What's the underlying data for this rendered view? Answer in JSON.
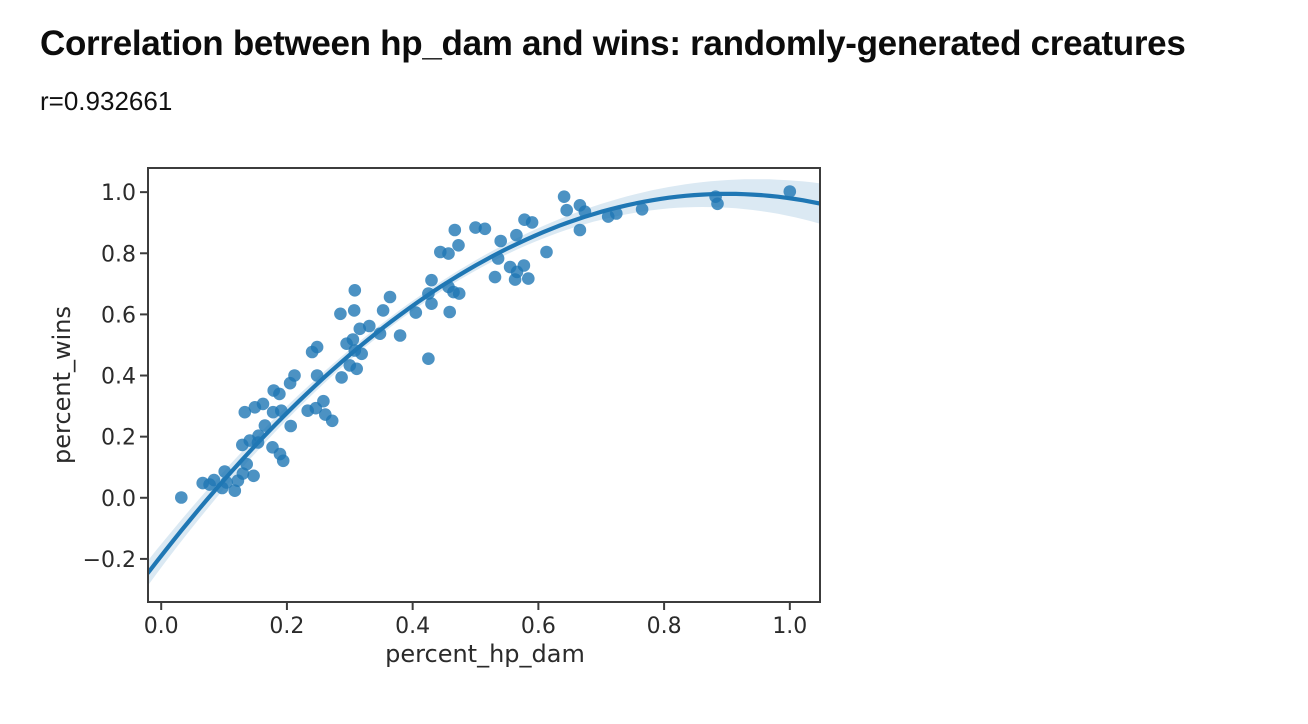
{
  "header": {
    "title": "Correlation between hp_dam and wins: randomly-generated creatures",
    "r_label": "r=0.932661"
  },
  "chart_data": {
    "type": "scatter",
    "title": "Correlation between hp_dam and wins: randomly-generated creatures",
    "annotation": "r=0.932661",
    "xlabel": "percent_hp_dam",
    "ylabel": "percent_wins",
    "xlim": [
      -0.021,
      1.048
    ],
    "ylim": [
      -0.341,
      1.079
    ],
    "grid": false,
    "legend": null,
    "x_ticks": [
      0.0,
      0.2,
      0.4,
      0.6,
      0.8,
      1.0
    ],
    "x_tick_labels": [
      "0.0",
      "0.2",
      "0.4",
      "0.6",
      "0.8",
      "1.0"
    ],
    "y_ticks": [
      1.0,
      0.8,
      0.6,
      0.4,
      0.2,
      0.0,
      -0.2
    ],
    "y_tick_labels": [
      "1.0",
      "0.8",
      "0.6",
      "0.4",
      "0.2",
      "0.0",
      "−0.2"
    ],
    "marker_color": "#1f77b4",
    "marker_opacity": 0.8,
    "line_color": "#1f77b4",
    "band_color": "#1f77b4",
    "band_opacity": 0.16,
    "points": [
      [
        0.032,
        0.001
      ],
      [
        0.066,
        0.048
      ],
      [
        0.077,
        0.043
      ],
      [
        0.084,
        0.058
      ],
      [
        0.097,
        0.032
      ],
      [
        0.104,
        0.05
      ],
      [
        0.101,
        0.086
      ],
      [
        0.117,
        0.023
      ],
      [
        0.122,
        0.056
      ],
      [
        0.13,
        0.079
      ],
      [
        0.136,
        0.11
      ],
      [
        0.147,
        0.072
      ],
      [
        0.129,
        0.173
      ],
      [
        0.141,
        0.187
      ],
      [
        0.154,
        0.181
      ],
      [
        0.155,
        0.203
      ],
      [
        0.133,
        0.28
      ],
      [
        0.149,
        0.296
      ],
      [
        0.162,
        0.307
      ],
      [
        0.165,
        0.236
      ],
      [
        0.177,
        0.165
      ],
      [
        0.189,
        0.143
      ],
      [
        0.194,
        0.121
      ],
      [
        0.178,
        0.28
      ],
      [
        0.191,
        0.285
      ],
      [
        0.206,
        0.235
      ],
      [
        0.179,
        0.351
      ],
      [
        0.188,
        0.34
      ],
      [
        0.205,
        0.375
      ],
      [
        0.212,
        0.4
      ],
      [
        0.233,
        0.285
      ],
      [
        0.246,
        0.293
      ],
      [
        0.258,
        0.316
      ],
      [
        0.261,
        0.272
      ],
      [
        0.272,
        0.252
      ],
      [
        0.24,
        0.477
      ],
      [
        0.248,
        0.493
      ],
      [
        0.248,
        0.4
      ],
      [
        0.287,
        0.394
      ],
      [
        0.285,
        0.602
      ],
      [
        0.295,
        0.504
      ],
      [
        0.3,
        0.433
      ],
      [
        0.305,
        0.518
      ],
      [
        0.307,
        0.613
      ],
      [
        0.308,
        0.482
      ],
      [
        0.308,
        0.679
      ],
      [
        0.311,
        0.422
      ],
      [
        0.316,
        0.553
      ],
      [
        0.319,
        0.471
      ],
      [
        0.331,
        0.562
      ],
      [
        0.348,
        0.537
      ],
      [
        0.353,
        0.613
      ],
      [
        0.364,
        0.657
      ],
      [
        0.38,
        0.531
      ],
      [
        0.405,
        0.606
      ],
      [
        0.425,
        0.455
      ],
      [
        0.425,
        0.668
      ],
      [
        0.43,
        0.712
      ],
      [
        0.43,
        0.635
      ],
      [
        0.444,
        0.804
      ],
      [
        0.457,
        0.69
      ],
      [
        0.457,
        0.799
      ],
      [
        0.459,
        0.608
      ],
      [
        0.465,
        0.673
      ],
      [
        0.467,
        0.876
      ],
      [
        0.473,
        0.826
      ],
      [
        0.474,
        0.668
      ],
      [
        0.5,
        0.884
      ],
      [
        0.515,
        0.88
      ],
      [
        0.531,
        0.722
      ],
      [
        0.536,
        0.783
      ],
      [
        0.54,
        0.84
      ],
      [
        0.565,
        0.859
      ],
      [
        0.555,
        0.755
      ],
      [
        0.566,
        0.739
      ],
      [
        0.577,
        0.76
      ],
      [
        0.563,
        0.714
      ],
      [
        0.584,
        0.717
      ],
      [
        0.578,
        0.91
      ],
      [
        0.59,
        0.901
      ],
      [
        0.613,
        0.804
      ],
      [
        0.641,
        0.985
      ],
      [
        0.645,
        0.941
      ],
      [
        0.666,
        0.957
      ],
      [
        0.674,
        0.936
      ],
      [
        0.666,
        0.876
      ],
      [
        0.711,
        0.92
      ],
      [
        0.724,
        0.93
      ],
      [
        0.765,
        0.944
      ],
      [
        0.882,
        0.985
      ],
      [
        0.885,
        0.962
      ],
      [
        1.0,
        1.002
      ]
    ],
    "regression": {
      "type": "polynomial",
      "order": 2,
      "coefficients_abc": [
        -0.19,
        2.63,
        -1.46
      ],
      "peak_x": 0.9
    },
    "ci_band": {
      "halfwidth_center": 0.016,
      "halfwidth_edge_right": 0.066,
      "center_x": 0.42
    }
  }
}
